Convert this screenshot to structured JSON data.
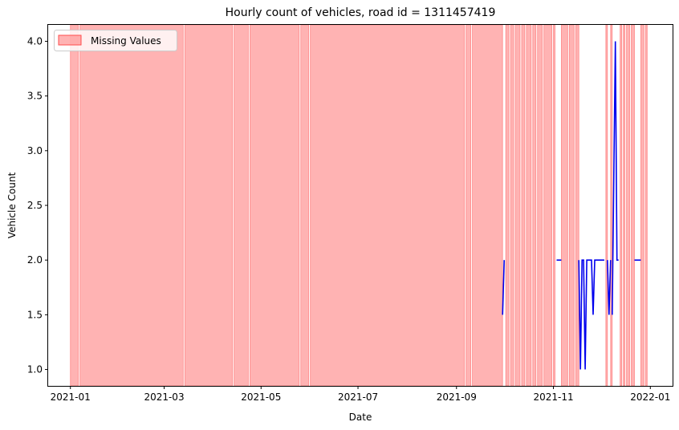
{
  "chart_data": {
    "type": "line",
    "title": "Hourly count of vehicles, road id = 1311457419",
    "xlabel": "Date",
    "ylabel": "Vehicle Count",
    "xlim": [
      "2020-12-18",
      "2022-01-15"
    ],
    "ylim": [
      0.85,
      4.15
    ],
    "x_ticks": [
      "2021-01",
      "2021-03",
      "2021-05",
      "2021-07",
      "2021-09",
      "2021-11",
      "2022-01"
    ],
    "y_ticks": [
      "1.0",
      "1.5",
      "2.0",
      "2.5",
      "3.0",
      "3.5",
      "4.0"
    ],
    "grid": false,
    "legend": {
      "position": "top-left",
      "entries": [
        "Missing Values"
      ]
    },
    "colors": {
      "line": "#0000ee",
      "missing": "#ff8080",
      "missing_alpha": 0.6
    },
    "missing_value_spans": [
      [
        "2021-01-01",
        "2021-01-06"
      ],
      [
        "2021-01-07",
        "2021-03-13"
      ],
      [
        "2021-03-14",
        "2021-04-13"
      ],
      [
        "2021-04-14",
        "2021-04-23"
      ],
      [
        "2021-04-24",
        "2021-05-25"
      ],
      [
        "2021-05-26",
        "2021-05-31"
      ],
      [
        "2021-06-01",
        "2021-09-06"
      ],
      [
        "2021-09-07",
        "2021-09-10"
      ],
      [
        "2021-09-11",
        "2021-09-30"
      ],
      [
        "2021-10-02",
        "2021-10-04"
      ],
      [
        "2021-10-05",
        "2021-10-07"
      ],
      [
        "2021-10-08",
        "2021-10-11"
      ],
      [
        "2021-10-12",
        "2021-10-14"
      ],
      [
        "2021-10-15",
        "2021-10-18"
      ],
      [
        "2021-10-19",
        "2021-10-21"
      ],
      [
        "2021-10-22",
        "2021-10-25"
      ],
      [
        "2021-10-26",
        "2021-10-31"
      ],
      [
        "2021-11-01",
        "2021-11-02"
      ],
      [
        "2021-11-06",
        "2021-11-10"
      ],
      [
        "2021-11-11",
        "2021-11-14"
      ],
      [
        "2021-11-15",
        "2021-11-17"
      ],
      [
        "2021-12-04",
        "2021-12-05"
      ],
      [
        "2021-12-07",
        "2021-12-08"
      ],
      [
        "2021-12-13",
        "2021-12-14"
      ],
      [
        "2021-12-15",
        "2021-12-16"
      ],
      [
        "2021-12-17",
        "2021-12-19"
      ],
      [
        "2021-12-20",
        "2021-12-22"
      ],
      [
        "2021-12-26",
        "2021-12-28"
      ],
      [
        "2021-12-29",
        "2021-12-30"
      ]
    ],
    "series": [
      {
        "segments": [
          [
            [
              "2021-09-30",
              1.5
            ],
            [
              "2021-10-01",
              2.0
            ]
          ],
          [
            [
              "2021-11-03",
              2.0
            ],
            [
              "2021-11-06",
              2.0
            ]
          ],
          [
            [
              "2021-11-17",
              2.0
            ],
            [
              "2021-11-18",
              1.0
            ],
            [
              "2021-11-19",
              2.0
            ],
            [
              "2021-11-20",
              2.0
            ],
            [
              "2021-11-21",
              1.0
            ],
            [
              "2021-11-22",
              2.0
            ],
            [
              "2021-11-24",
              2.0
            ],
            [
              "2021-11-25",
              2.0
            ],
            [
              "2021-11-26",
              1.5
            ],
            [
              "2021-11-27",
              2.0
            ],
            [
              "2021-12-03",
              2.0
            ]
          ],
          [
            [
              "2021-12-05",
              2.0
            ],
            [
              "2021-12-06",
              1.5
            ],
            [
              "2021-12-07",
              2.0
            ]
          ],
          [
            [
              "2021-12-08",
              1.5
            ],
            [
              "2021-12-10",
              4.0
            ],
            [
              "2021-12-11",
              2.0
            ],
            [
              "2021-12-12",
              2.0
            ]
          ],
          [
            [
              "2021-12-22",
              2.0
            ],
            [
              "2021-12-26",
              2.0
            ]
          ]
        ]
      }
    ]
  }
}
